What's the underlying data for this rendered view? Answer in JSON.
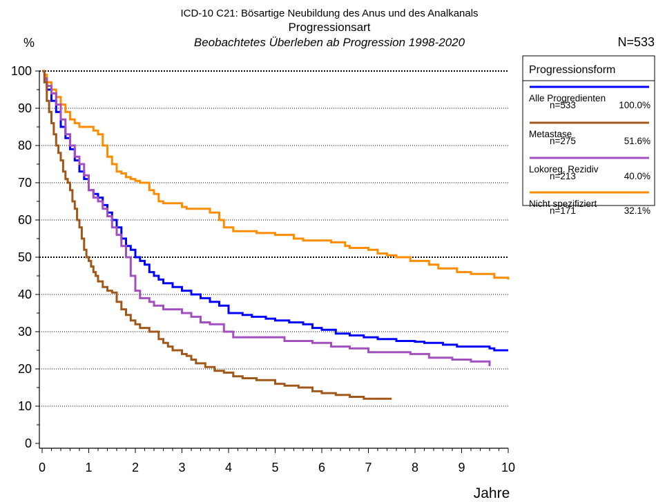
{
  "header": {
    "title_line1": "ICD-10 C21: Bösartige Neubildung des Anus und des Analkanals",
    "title_line2": "Progressionsart",
    "title_line3": "Beobachtetes Überleben ab Progression 1998-2020",
    "n_total": "N=533"
  },
  "colors": {
    "alle": "#0000ff",
    "metastase": "#a0581a",
    "lokoreg": "#a24fc0",
    "nicht": "#ff8c00"
  },
  "chart_data": {
    "type": "line",
    "title": "ICD-10 C21: Bösartige Neubildung des Anus und des Analkanals",
    "subtitle": "Beobachtetes Überleben ab Progression 1998-2020",
    "xlabel": "Jahre",
    "ylabel": "%",
    "xlim": [
      0,
      10
    ],
    "ylim": [
      0,
      100
    ],
    "x_ticks": [
      "0",
      "1",
      "2",
      "3",
      "4",
      "5",
      "6",
      "7",
      "8",
      "9",
      "10"
    ],
    "y_ticks": [
      "0",
      "10",
      "20",
      "30",
      "40",
      "50",
      "60",
      "70",
      "80",
      "90",
      "100"
    ],
    "grid": "horizontal dotted at every 10%",
    "legend_title": "Progressionsform",
    "legend_position": "right",
    "series": [
      {
        "name": "Alle Progredienten",
        "n": "n=533",
        "pct": "100.0%",
        "color": "#0000ff",
        "points": [
          [
            0,
            100
          ],
          [
            0.05,
            97
          ],
          [
            0.1,
            95
          ],
          [
            0.2,
            92
          ],
          [
            0.3,
            89
          ],
          [
            0.4,
            85
          ],
          [
            0.5,
            82
          ],
          [
            0.6,
            79
          ],
          [
            0.7,
            76
          ],
          [
            0.8,
            73
          ],
          [
            0.9,
            71
          ],
          [
            1.0,
            68
          ],
          [
            1.1,
            67
          ],
          [
            1.2,
            66
          ],
          [
            1.3,
            64
          ],
          [
            1.4,
            62
          ],
          [
            1.5,
            60
          ],
          [
            1.6,
            58
          ],
          [
            1.7,
            55
          ],
          [
            1.8,
            53
          ],
          [
            1.9,
            52
          ],
          [
            2.0,
            50
          ],
          [
            2.1,
            49
          ],
          [
            2.2,
            48
          ],
          [
            2.3,
            46
          ],
          [
            2.4,
            45
          ],
          [
            2.5,
            44
          ],
          [
            2.6,
            43
          ],
          [
            2.8,
            42
          ],
          [
            3.0,
            41
          ],
          [
            3.2,
            40
          ],
          [
            3.4,
            39
          ],
          [
            3.6,
            38
          ],
          [
            3.8,
            37
          ],
          [
            4.0,
            35
          ],
          [
            4.3,
            34.5
          ],
          [
            4.5,
            34
          ],
          [
            4.8,
            33.5
          ],
          [
            5.0,
            33
          ],
          [
            5.3,
            32.5
          ],
          [
            5.6,
            32
          ],
          [
            5.8,
            31
          ],
          [
            6.0,
            30.5
          ],
          [
            6.3,
            29.5
          ],
          [
            6.6,
            29
          ],
          [
            6.9,
            28.5
          ],
          [
            7.2,
            28
          ],
          [
            7.6,
            27.5
          ],
          [
            8.0,
            27.3
          ],
          [
            8.2,
            27
          ],
          [
            8.6,
            26.5
          ],
          [
            8.9,
            26
          ],
          [
            9.3,
            26
          ],
          [
            9.6,
            25.5
          ],
          [
            9.7,
            25
          ],
          [
            10.0,
            25
          ]
        ]
      },
      {
        "name": "Metastase",
        "n": "n=275",
        "pct": "51.6%",
        "color": "#a0581a",
        "points": [
          [
            0,
            100
          ],
          [
            0.05,
            97
          ],
          [
            0.1,
            92
          ],
          [
            0.15,
            89
          ],
          [
            0.2,
            86
          ],
          [
            0.25,
            83
          ],
          [
            0.3,
            80
          ],
          [
            0.35,
            78
          ],
          [
            0.4,
            76
          ],
          [
            0.45,
            73
          ],
          [
            0.5,
            71
          ],
          [
            0.55,
            70
          ],
          [
            0.6,
            68
          ],
          [
            0.65,
            65
          ],
          [
            0.7,
            63
          ],
          [
            0.75,
            60
          ],
          [
            0.8,
            58
          ],
          [
            0.85,
            55
          ],
          [
            0.9,
            52
          ],
          [
            0.95,
            50
          ],
          [
            1.0,
            49
          ],
          [
            1.05,
            47.5
          ],
          [
            1.1,
            46
          ],
          [
            1.15,
            45
          ],
          [
            1.2,
            43.5
          ],
          [
            1.3,
            42
          ],
          [
            1.4,
            41
          ],
          [
            1.5,
            40.5
          ],
          [
            1.6,
            38
          ],
          [
            1.7,
            36
          ],
          [
            1.8,
            34.5
          ],
          [
            1.9,
            33
          ],
          [
            2.0,
            32
          ],
          [
            2.1,
            31
          ],
          [
            2.3,
            30
          ],
          [
            2.5,
            28
          ],
          [
            2.6,
            27
          ],
          [
            2.7,
            26
          ],
          [
            2.8,
            25
          ],
          [
            3.0,
            24
          ],
          [
            3.1,
            23.5
          ],
          [
            3.2,
            22.5
          ],
          [
            3.3,
            21.5
          ],
          [
            3.5,
            20.5
          ],
          [
            3.7,
            19.5
          ],
          [
            3.9,
            19
          ],
          [
            4.1,
            18
          ],
          [
            4.3,
            17.5
          ],
          [
            4.6,
            17
          ],
          [
            5.0,
            16
          ],
          [
            5.2,
            15.5
          ],
          [
            5.5,
            15
          ],
          [
            5.8,
            14
          ],
          [
            6.0,
            13.5
          ],
          [
            6.3,
            13
          ],
          [
            6.6,
            12.5
          ],
          [
            6.9,
            12
          ],
          [
            7.3,
            12
          ],
          [
            7.5,
            12
          ]
        ]
      },
      {
        "name": "Lokoreg. Rezidiv",
        "n": "n=213",
        "pct": "40.0%",
        "color": "#a24fc0",
        "points": [
          [
            0,
            100
          ],
          [
            0.05,
            98
          ],
          [
            0.1,
            96
          ],
          [
            0.2,
            94
          ],
          [
            0.3,
            91
          ],
          [
            0.4,
            87
          ],
          [
            0.5,
            83
          ],
          [
            0.6,
            80
          ],
          [
            0.7,
            77
          ],
          [
            0.8,
            75
          ],
          [
            0.9,
            72
          ],
          [
            1.0,
            68
          ],
          [
            1.1,
            66
          ],
          [
            1.2,
            65
          ],
          [
            1.3,
            63
          ],
          [
            1.4,
            61
          ],
          [
            1.5,
            58
          ],
          [
            1.6,
            56
          ],
          [
            1.7,
            53
          ],
          [
            1.8,
            50
          ],
          [
            1.9,
            45
          ],
          [
            2.0,
            41
          ],
          [
            2.1,
            39
          ],
          [
            2.3,
            38
          ],
          [
            2.4,
            37
          ],
          [
            2.6,
            36
          ],
          [
            3.0,
            35
          ],
          [
            3.2,
            34
          ],
          [
            3.4,
            32.5
          ],
          [
            3.6,
            32
          ],
          [
            3.9,
            30
          ],
          [
            4.1,
            28.5
          ],
          [
            4.4,
            28.5
          ],
          [
            5.0,
            28.5
          ],
          [
            5.2,
            27.5
          ],
          [
            5.8,
            27
          ],
          [
            6.2,
            26
          ],
          [
            6.6,
            25.5
          ],
          [
            7.0,
            24.5
          ],
          [
            7.5,
            24.5
          ],
          [
            7.9,
            24
          ],
          [
            8.3,
            23
          ],
          [
            8.8,
            22.5
          ],
          [
            9.2,
            22
          ],
          [
            9.6,
            21
          ],
          [
            9.62,
            21
          ]
        ]
      },
      {
        "name": "Nicht spezifiziert",
        "n": "n=171",
        "pct": "32.1%",
        "color": "#ff8c00",
        "points": [
          [
            0,
            100
          ],
          [
            0.05,
            99
          ],
          [
            0.1,
            97
          ],
          [
            0.2,
            95
          ],
          [
            0.3,
            93
          ],
          [
            0.4,
            91
          ],
          [
            0.5,
            89
          ],
          [
            0.6,
            87
          ],
          [
            0.7,
            86
          ],
          [
            0.8,
            85
          ],
          [
            1.0,
            85
          ],
          [
            1.1,
            84
          ],
          [
            1.2,
            83
          ],
          [
            1.3,
            80
          ],
          [
            1.4,
            77
          ],
          [
            1.5,
            75
          ],
          [
            1.6,
            73
          ],
          [
            1.7,
            72.5
          ],
          [
            1.8,
            71.5
          ],
          [
            1.9,
            71
          ],
          [
            2.0,
            70.5
          ],
          [
            2.1,
            70
          ],
          [
            2.2,
            70
          ],
          [
            2.3,
            68
          ],
          [
            2.4,
            67
          ],
          [
            2.5,
            65
          ],
          [
            2.6,
            64.5
          ],
          [
            2.9,
            64.5
          ],
          [
            3.0,
            63.5
          ],
          [
            3.1,
            63
          ],
          [
            3.4,
            63
          ],
          [
            3.6,
            62
          ],
          [
            3.8,
            60
          ],
          [
            3.9,
            58
          ],
          [
            4.1,
            57
          ],
          [
            4.5,
            57
          ],
          [
            4.6,
            56.5
          ],
          [
            5.0,
            56
          ],
          [
            5.4,
            55
          ],
          [
            5.6,
            54.5
          ],
          [
            6.0,
            54.5
          ],
          [
            6.2,
            54
          ],
          [
            6.5,
            53
          ],
          [
            6.6,
            52.5
          ],
          [
            7.0,
            52
          ],
          [
            7.2,
            51
          ],
          [
            7.4,
            50.5
          ],
          [
            7.6,
            50
          ],
          [
            7.9,
            49
          ],
          [
            8.2,
            49
          ],
          [
            8.3,
            48
          ],
          [
            8.5,
            47
          ],
          [
            8.9,
            46
          ],
          [
            9.2,
            45.5
          ],
          [
            9.6,
            45.5
          ],
          [
            9.7,
            44.5
          ],
          [
            10.0,
            44
          ]
        ]
      }
    ]
  }
}
